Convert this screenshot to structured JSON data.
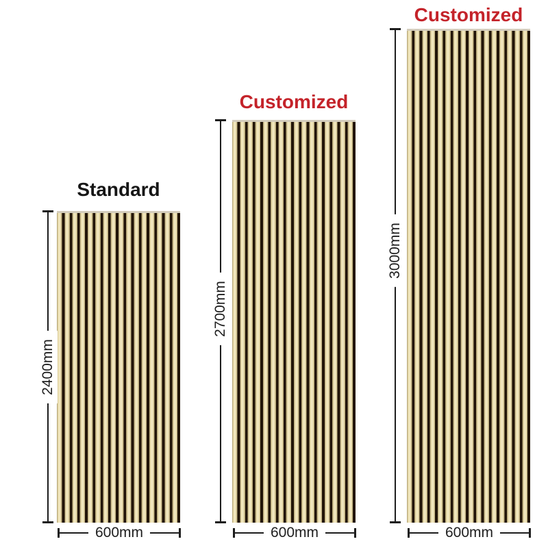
{
  "scene": {
    "background": "#ffffff",
    "kind": "wood-slat-acoustic-panel-size-diagram"
  },
  "colors": {
    "title_black": "#161616",
    "title_red": "#c4232a",
    "dimension_line": "#1d1d1d",
    "dimension_text": "#1e1e1e",
    "wood_highlight": "#f4ebc6",
    "wood_mid": "#e9dcab",
    "wood_shadow": "#ab9b6f",
    "slat_groove_black": "#221508",
    "panel_top_edge": "#d4cdbd"
  },
  "panels": [
    {
      "title": "Standard",
      "title_color": "#161616",
      "height_label": "2400mm",
      "width_label": "600mm"
    },
    {
      "title": "Customized",
      "title_color": "#c4232a",
      "height_label": "2700mm",
      "width_label": "600mm"
    },
    {
      "title": "Customized",
      "title_color": "#c4232a",
      "height_label": "3000mm",
      "width_label": "600mm"
    }
  ]
}
